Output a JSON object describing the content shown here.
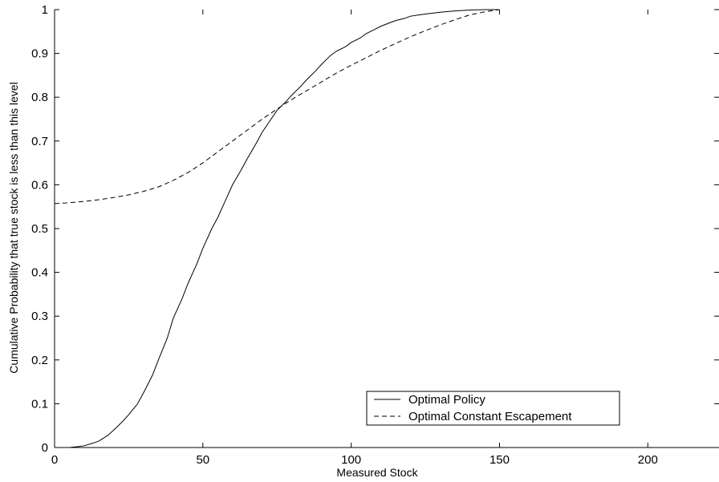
{
  "chart_data": {
    "type": "line",
    "xlabel": "Measured Stock",
    "ylabel": "Cumulative Probability that true stock is less than this level",
    "xlim": [
      0,
      224
    ],
    "ylim": [
      0,
      1
    ],
    "xticks": [
      0,
      50,
      100,
      150,
      200
    ],
    "xtick_labels": [
      "0",
      "50",
      "100",
      "150",
      "200"
    ],
    "yticks": [
      0,
      0.1,
      0.2,
      0.3,
      0.4,
      0.5,
      0.6,
      0.7,
      0.8,
      0.9,
      1
    ],
    "ytick_labels": [
      "0",
      "0.1",
      "0.2",
      "0.3",
      "0.4",
      "0.5",
      "0.6",
      "0.7",
      "0.8",
      "0.9",
      "1"
    ],
    "grid": false,
    "legend_position": "bottom-center",
    "series": [
      {
        "name": "Optimal Policy",
        "line_style": "solid",
        "color": "#000000",
        "x": [
          0,
          5,
          8,
          10,
          13,
          15,
          18,
          20,
          23,
          25,
          28,
          30,
          33,
          35,
          38,
          40,
          43,
          45,
          48,
          50,
          53,
          55,
          58,
          60,
          63,
          65,
          68,
          70,
          73,
          75,
          78,
          80,
          83,
          85,
          88,
          90,
          93,
          95,
          98,
          100,
          103,
          105,
          108,
          110,
          113,
          115,
          118,
          120,
          123,
          125,
          130,
          135,
          140,
          145,
          150
        ],
        "y": [
          0,
          0,
          0.002,
          0.004,
          0.01,
          0.015,
          0.028,
          0.04,
          0.06,
          0.075,
          0.1,
          0.125,
          0.165,
          0.2,
          0.25,
          0.295,
          0.34,
          0.375,
          0.42,
          0.455,
          0.5,
          0.525,
          0.57,
          0.6,
          0.635,
          0.66,
          0.695,
          0.72,
          0.75,
          0.77,
          0.79,
          0.805,
          0.825,
          0.84,
          0.86,
          0.875,
          0.895,
          0.905,
          0.915,
          0.925,
          0.935,
          0.945,
          0.955,
          0.962,
          0.97,
          0.975,
          0.98,
          0.985,
          0.988,
          0.99,
          0.994,
          0.997,
          0.999,
          1.0,
          1.0
        ]
      },
      {
        "name": "Optimal Constant Escapement",
        "line_style": "dashed",
        "color": "#000000",
        "x": [
          0,
          5,
          10,
          15,
          20,
          25,
          30,
          35,
          40,
          45,
          50,
          55,
          60,
          65,
          70,
          75,
          80,
          85,
          90,
          95,
          100,
          105,
          110,
          115,
          120,
          125,
          130,
          135,
          140,
          145,
          150
        ],
        "y": [
          0.557,
          0.559,
          0.562,
          0.566,
          0.571,
          0.577,
          0.585,
          0.595,
          0.61,
          0.628,
          0.65,
          0.675,
          0.7,
          0.725,
          0.75,
          0.773,
          0.795,
          0.815,
          0.835,
          0.855,
          0.873,
          0.89,
          0.907,
          0.923,
          0.938,
          0.952,
          0.965,
          0.977,
          0.988,
          0.995,
          1.0
        ]
      }
    ]
  }
}
